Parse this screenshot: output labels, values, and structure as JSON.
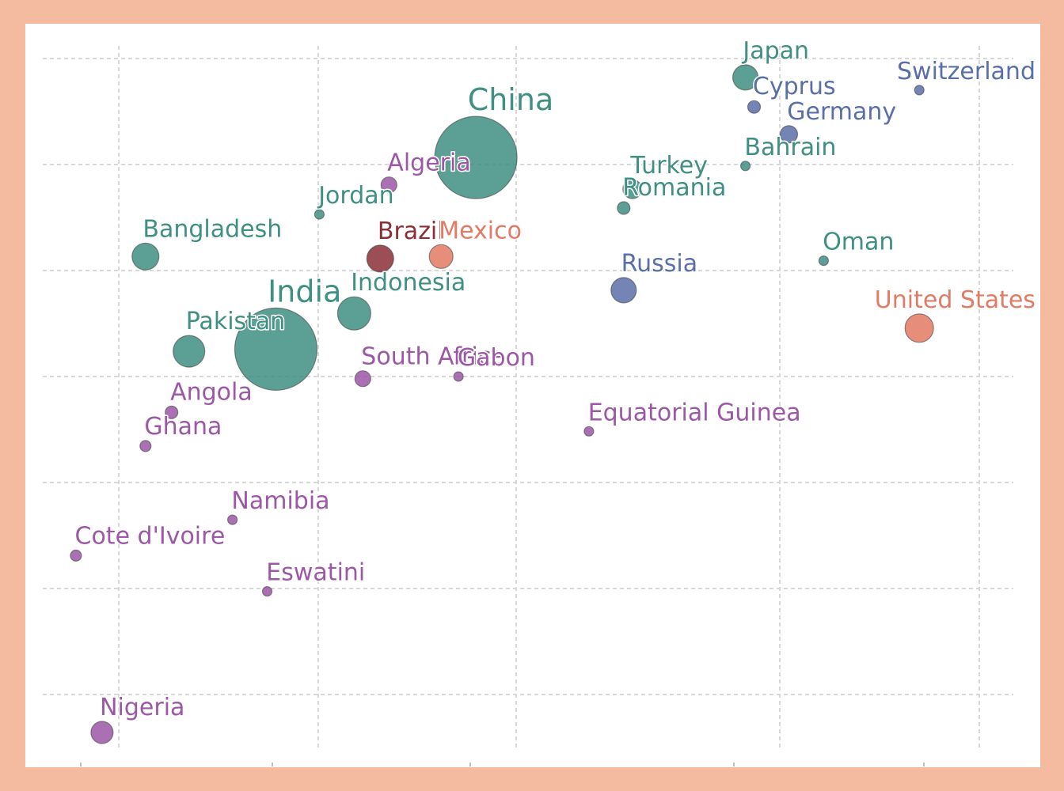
{
  "colors": {
    "background_border": "#f4bba0",
    "plot_background": "#ffffff",
    "grid": "#d8d8d8"
  },
  "chart_data": {
    "type": "scatter",
    "title": "",
    "xlabel": "",
    "ylabel": "",
    "grid": true,
    "legend": "none",
    "palette": {
      "teal": "#3f8f82",
      "blue": "#5a6fa8",
      "purple": "#9c57a6",
      "maroon": "#8a2f37",
      "salmon": "#e37a63",
      "brown": "#a0673a"
    },
    "points": [
      {
        "x": 1.2,
        "y": 5.9,
        "size": 14,
        "group": "purple",
        "label": "Nigeria"
      },
      {
        "x": 5.5,
        "y": 33.2,
        "size": 52,
        "group": "teal",
        "label": "China"
      },
      {
        "x": 3.2,
        "y": 24.1,
        "size": 52,
        "group": "teal",
        "label": "India"
      },
      {
        "x": 10.6,
        "y": 25.1,
        "size": 18,
        "group": "salmon",
        "label": "United States"
      },
      {
        "x": 4.1,
        "y": 25.8,
        "size": 21,
        "group": "teal",
        "label": "Indonesia"
      },
      {
        "x": 2.2,
        "y": 24.0,
        "size": 20,
        "group": "teal",
        "label": "Pakistan"
      },
      {
        "x": 4.4,
        "y": 28.4,
        "size": 17,
        "group": "maroon",
        "label": "Brazil"
      },
      {
        "x": 1.7,
        "y": 28.5,
        "size": 17,
        "group": "teal",
        "label": "Bangladesh"
      },
      {
        "x": 7.2,
        "y": 26.9,
        "size": 16,
        "group": "blue",
        "label": "Russia"
      },
      {
        "x": 5.1,
        "y": 28.5,
        "size": 15,
        "group": "salmon",
        "label": "Mexico"
      },
      {
        "x": 8.6,
        "y": 37.0,
        "size": 16,
        "group": "teal",
        "label": "Japan"
      },
      {
        "x": 9.1,
        "y": 34.3,
        "size": 11,
        "group": "blue",
        "label": "Germany"
      },
      {
        "x": 7.3,
        "y": 31.7,
        "size": 12,
        "group": "teal",
        "label": "Turkey"
      },
      {
        "x": 4.5,
        "y": 31.9,
        "size": 10,
        "group": "purple",
        "label": "Algeria"
      },
      {
        "x": 4.2,
        "y": 22.7,
        "size": 10,
        "group": "purple",
        "label": "South Africa"
      },
      {
        "x": 2.0,
        "y": 21.1,
        "size": 8,
        "group": "purple",
        "label": "Angola"
      },
      {
        "x": 1.7,
        "y": 19.5,
        "size": 7,
        "group": "purple",
        "label": "Ghana"
      },
      {
        "x": 2.7,
        "y": 16.0,
        "size": 6,
        "group": "purple",
        "label": "Namibia"
      },
      {
        "x": 3.1,
        "y": 12.6,
        "size": 6,
        "group": "purple",
        "label": "Eswatini"
      },
      {
        "x": 0.9,
        "y": 14.3,
        "size": 7,
        "group": "purple",
        "label": "Cote d'Ivoire"
      },
      {
        "x": 6.8,
        "y": 20.2,
        "size": 6,
        "group": "purple",
        "label": "Equatorial Guinea"
      },
      {
        "x": 5.3,
        "y": 22.8,
        "size": 6,
        "group": "purple",
        "label": "Gabon"
      },
      {
        "x": 3.7,
        "y": 30.5,
        "size": 6,
        "group": "teal",
        "label": "Jordan"
      },
      {
        "x": 7.2,
        "y": 30.8,
        "size": 8,
        "group": "teal",
        "label": "Romania"
      },
      {
        "x": 9.5,
        "y": 28.3,
        "size": 6,
        "group": "teal",
        "label": "Oman"
      },
      {
        "x": 8.6,
        "y": 32.8,
        "size": 6,
        "group": "teal",
        "label": "Bahrain"
      },
      {
        "x": 8.7,
        "y": 35.6,
        "size": 8,
        "group": "blue",
        "label": "Cyprus"
      },
      {
        "x": 10.6,
        "y": 36.4,
        "size": 6,
        "group": "blue",
        "label": "Switzerland"
      }
    ]
  }
}
